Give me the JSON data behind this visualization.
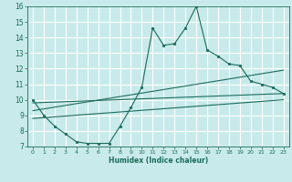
{
  "xlabel": "Humidex (Indice chaleur)",
  "bg_color": "#c8eaea",
  "line_color": "#1a6b5a",
  "grid_color": "#ffffff",
  "xlim": [
    -0.5,
    23.5
  ],
  "ylim": [
    7,
    16
  ],
  "xticks": [
    0,
    1,
    2,
    3,
    4,
    5,
    6,
    7,
    8,
    9,
    10,
    11,
    12,
    13,
    14,
    15,
    16,
    17,
    18,
    19,
    20,
    21,
    22,
    23
  ],
  "yticks": [
    7,
    8,
    9,
    10,
    11,
    12,
    13,
    14,
    15,
    16
  ],
  "main_x": [
    0,
    1,
    2,
    3,
    4,
    5,
    6,
    7,
    8,
    9,
    10,
    11,
    12,
    13,
    14,
    15,
    16,
    17,
    18,
    19,
    20,
    21,
    22,
    23
  ],
  "main_y": [
    10.0,
    9.0,
    8.3,
    7.8,
    7.3,
    7.2,
    7.2,
    7.2,
    8.3,
    9.5,
    10.8,
    14.6,
    13.5,
    13.6,
    14.6,
    16.0,
    13.2,
    12.8,
    12.3,
    12.2,
    11.2,
    11.0,
    10.8,
    10.4
  ],
  "trend1_x": [
    0,
    23
  ],
  "trend1_y": [
    9.8,
    10.4
  ],
  "trend2_x": [
    0,
    23
  ],
  "trend2_y": [
    9.3,
    11.9
  ],
  "trend3_x": [
    0,
    23
  ],
  "trend3_y": [
    8.8,
    10.0
  ]
}
